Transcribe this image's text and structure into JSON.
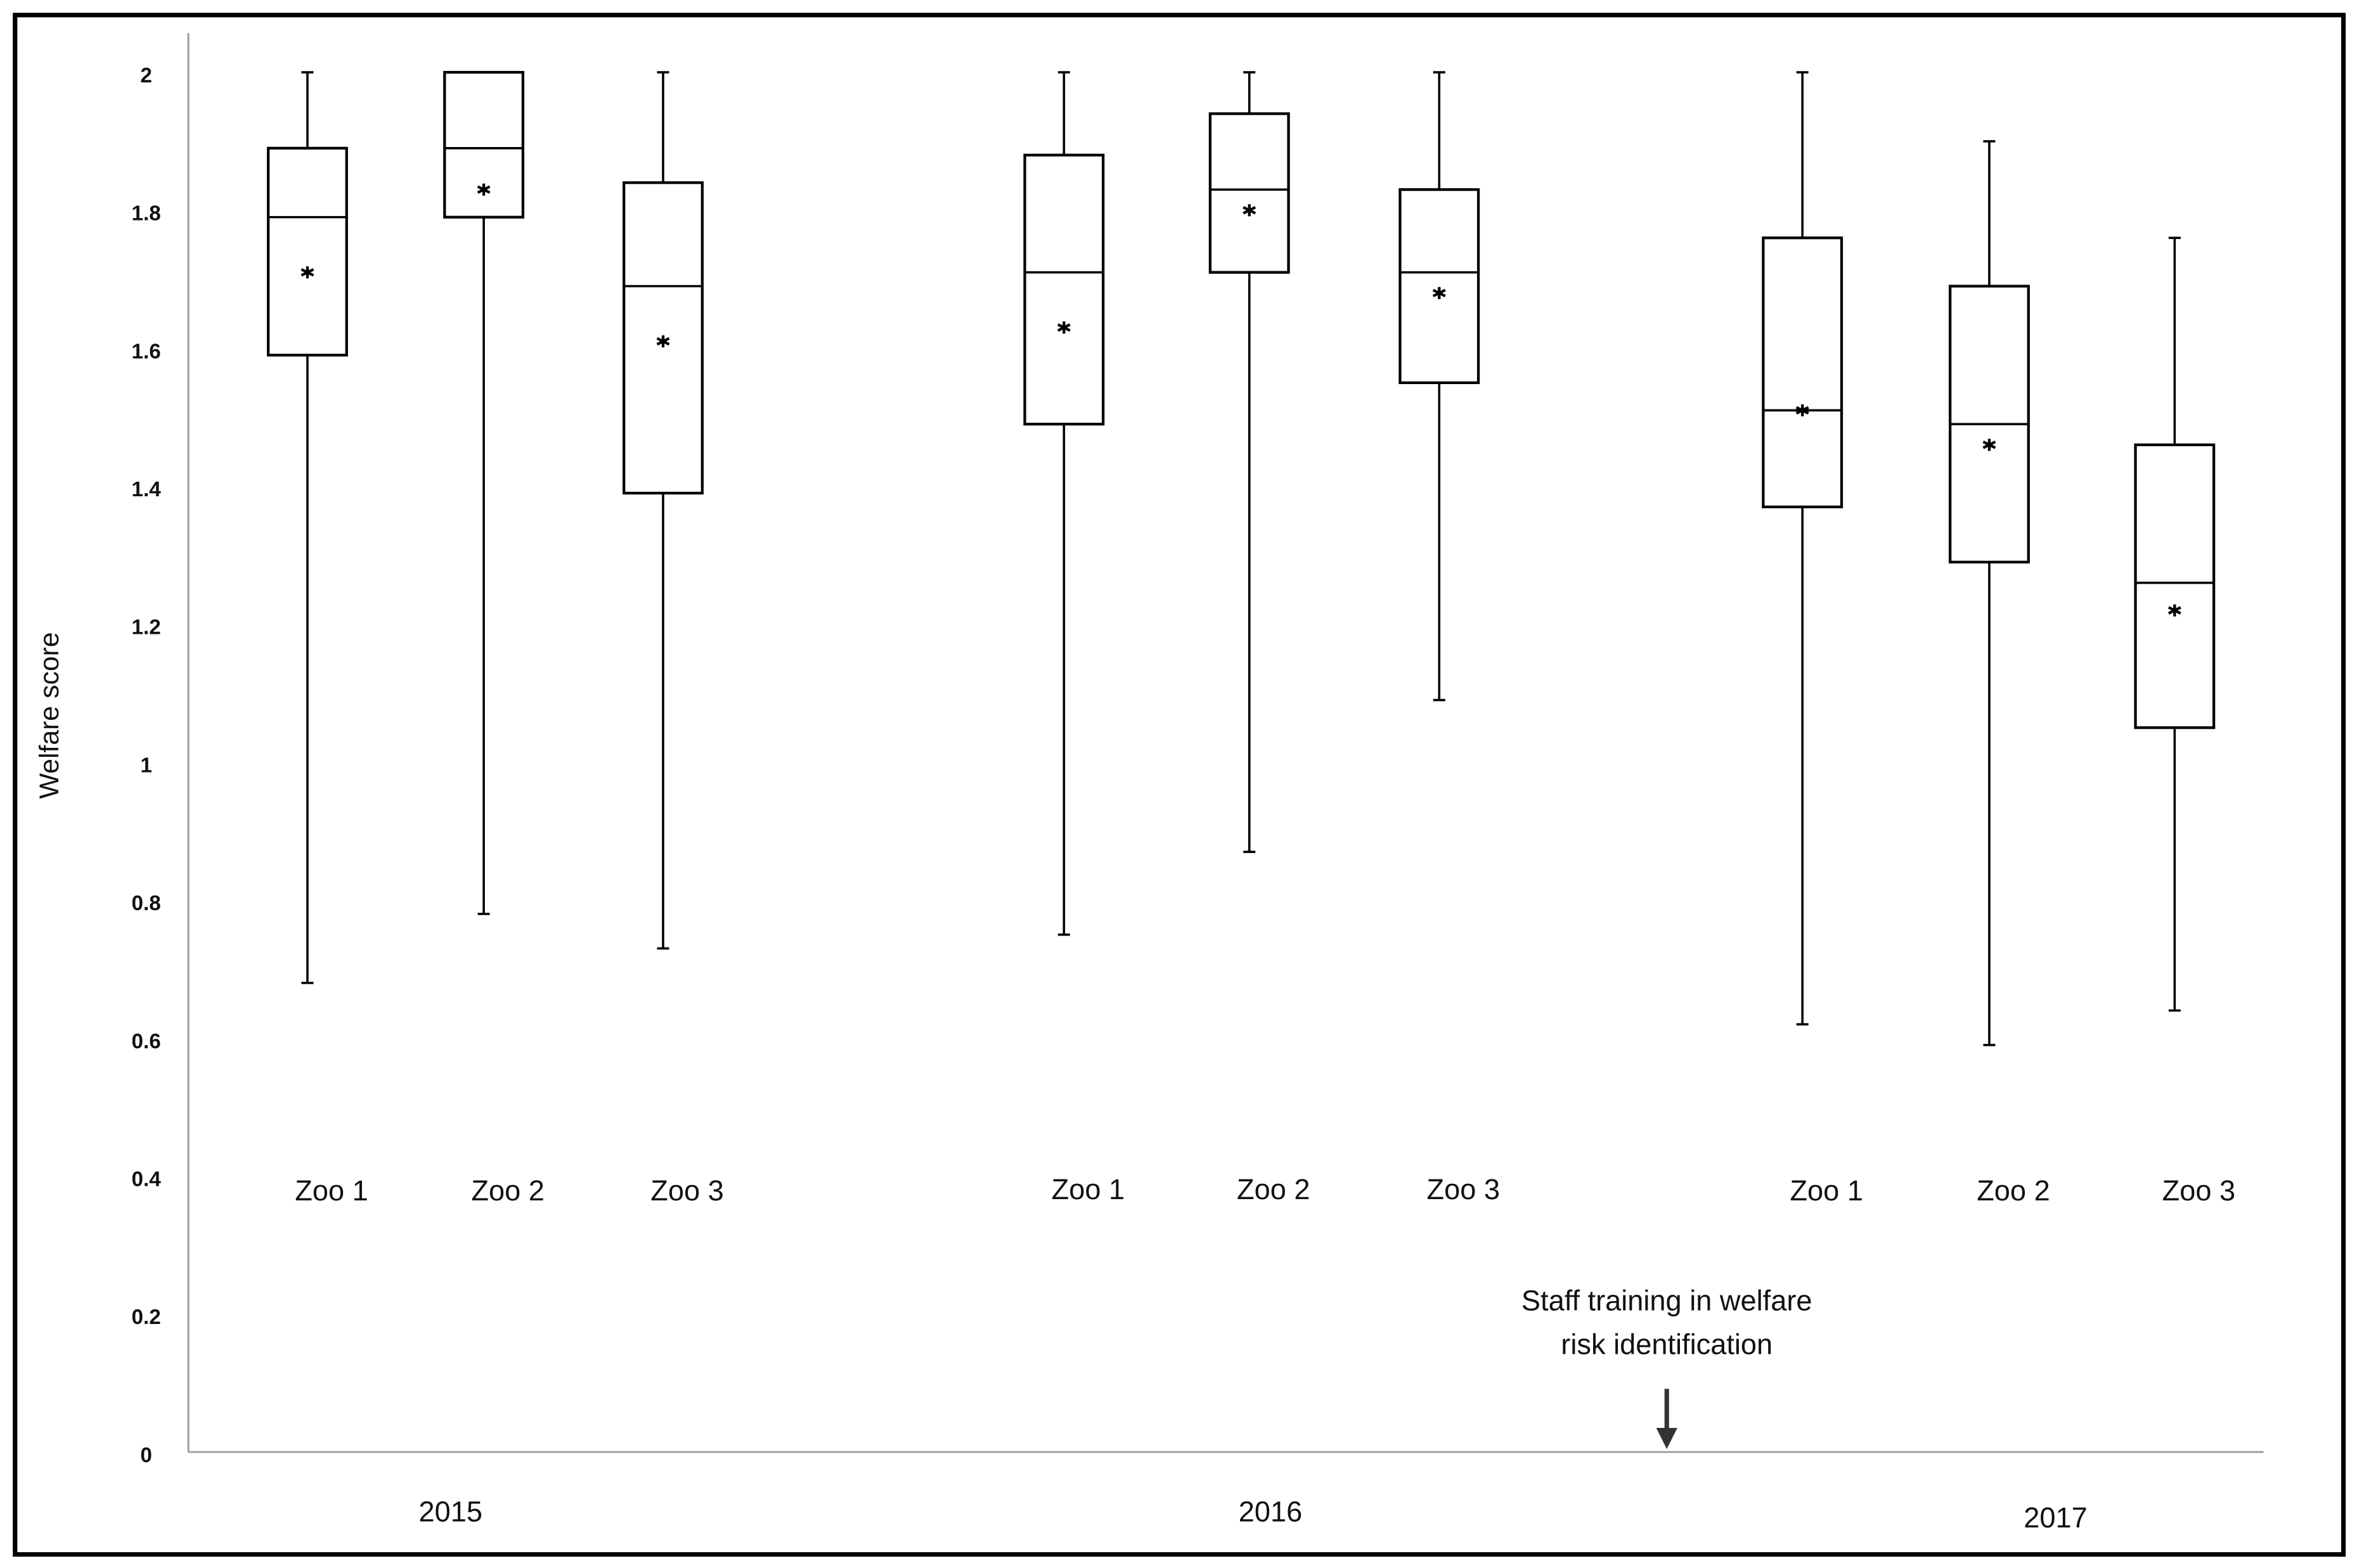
{
  "chart_data": {
    "type": "box",
    "y_label": "Welfare score",
    "ylim": [
      0,
      2
    ],
    "yticks": [
      0,
      0.2,
      0.4,
      0.6,
      0.8,
      1,
      1.2,
      1.4,
      1.6,
      1.8,
      2
    ],
    "annotation": [
      "Staff training in welfare",
      "risk identification"
    ],
    "groups": [
      {
        "label": "2015",
        "boxes": [
          {
            "name": "Zoo 1",
            "whisker_low": 0.68,
            "q1": 1.59,
            "median": 1.79,
            "q3": 1.89,
            "whisker_high": 2.0,
            "mean": 1.71
          },
          {
            "name": "Zoo 2",
            "whisker_low": 0.78,
            "q1": 1.79,
            "median": 1.89,
            "q3": 2.0,
            "whisker_high": 2.0,
            "mean": 1.83
          },
          {
            "name": "Zoo 3",
            "whisker_low": 0.73,
            "q1": 1.39,
            "median": 1.69,
            "q3": 1.84,
            "whisker_high": 2.0,
            "mean": 1.61
          }
        ]
      },
      {
        "label": "2016",
        "boxes": [
          {
            "name": "Zoo 1",
            "whisker_low": 0.75,
            "q1": 1.49,
            "median": 1.71,
            "q3": 1.88,
            "whisker_high": 2.0,
            "mean": 1.63
          },
          {
            "name": "Zoo 2",
            "whisker_low": 0.87,
            "q1": 1.71,
            "median": 1.83,
            "q3": 1.94,
            "whisker_high": 2.0,
            "mean": 1.8
          },
          {
            "name": "Zoo 3",
            "whisker_low": 1.09,
            "q1": 1.55,
            "median": 1.71,
            "q3": 1.83,
            "whisker_high": 2.0,
            "mean": 1.68
          }
        ]
      },
      {
        "label": "2017",
        "boxes": [
          {
            "name": "Zoo 1",
            "whisker_low": 0.62,
            "q1": 1.37,
            "median": 1.51,
            "q3": 1.76,
            "whisker_high": 2.0,
            "mean": 1.51
          },
          {
            "name": "Zoo 2",
            "whisker_low": 0.59,
            "q1": 1.29,
            "median": 1.49,
            "q3": 1.69,
            "whisker_high": 1.9,
            "mean": 1.46
          },
          {
            "name": "Zoo 3",
            "whisker_low": 0.64,
            "q1": 1.05,
            "median": 1.26,
            "q3": 1.46,
            "whisker_high": 1.76,
            "mean": 1.22
          }
        ]
      }
    ]
  }
}
